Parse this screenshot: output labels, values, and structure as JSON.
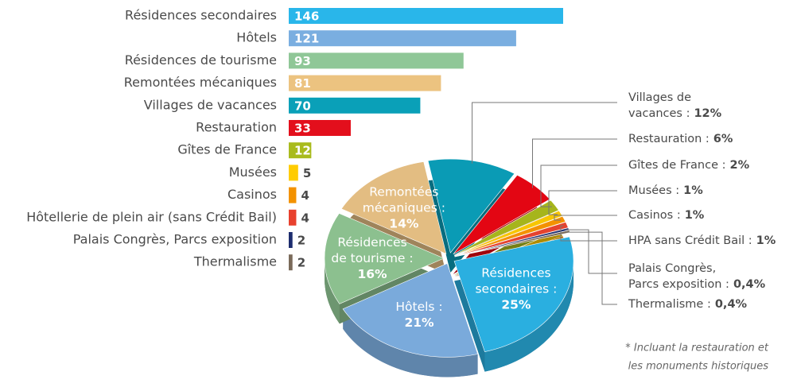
{
  "chart_data": [
    {
      "type": "bar",
      "categories": [
        "Résidences secondaires",
        "Hôtels",
        "Résidences de tourisme",
        "Remontées mécaniques",
        "Villages de vacances",
        "Restauration",
        "Gîtes de France",
        "Musées",
        "Casinos",
        "Hôtellerie de plein air (sans Crédit Bail)",
        "Palais Congrès, Parcs exposition",
        "Thermalisme"
      ],
      "values": [
        146,
        121,
        93,
        81,
        70,
        33,
        12,
        5,
        4,
        4,
        2,
        2
      ],
      "colors": [
        "#29b6ea",
        "#7aaee0",
        "#8fc797",
        "#ecc380",
        "#0aa0b8",
        "#e30f1c",
        "#a9bb1d",
        "#ffcc00",
        "#f39200",
        "#e8412e",
        "#1d2d6e",
        "#7a6a5a"
      ]
    },
    {
      "type": "pie",
      "categories": [
        [
          "Résidences",
          "secondaires :"
        ],
        [
          "Hôtels :"
        ],
        [
          "Résidences",
          "de tourisme :"
        ],
        [
          "Remontées",
          "mécaniques :"
        ],
        [
          "Villages de",
          "vacances :"
        ],
        [
          "Restauration :"
        ],
        [
          "Gîtes de France :"
        ],
        [
          "Musées :"
        ],
        [
          "Casinos :"
        ],
        [
          "HPA sans Crédit Bail :"
        ],
        [
          "Palais Congrès,",
          "Parcs exposition :"
        ],
        [
          "Thermalisme :"
        ]
      ],
      "values": [
        25,
        21,
        16,
        14,
        12,
        6,
        2,
        1,
        1,
        1,
        0.4,
        0.4
      ],
      "value_labels": [
        "25%",
        "21%",
        "16%",
        "14%",
        "12%",
        "6%",
        "2%",
        "1%",
        "1%",
        "1%",
        "0,4%",
        "0,4%"
      ],
      "colors": [
        "#2aafe0",
        "#7aaadb",
        "#8cc08f",
        "#e3bd82",
        "#0a9bb5",
        "#e30613",
        "#a6b51c",
        "#f7c600",
        "#f39200",
        "#e5432f",
        "#263574",
        "#7b6a57"
      ],
      "annotation": [
        "* Incluant la restauration et",
        "les monuments historiques"
      ]
    }
  ]
}
